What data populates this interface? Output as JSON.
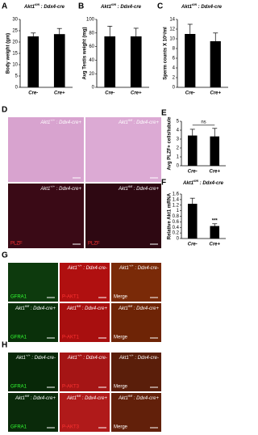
{
  "chart_data": [
    {
      "type": "bar",
      "letter": "A",
      "title": [
        "Akt1",
        "fl/fl",
        " : Ddx4-cre"
      ],
      "ylabel": "Body weight (gm)",
      "categories": [
        "Cre-",
        "Cre+"
      ],
      "values": [
        22.5,
        23.5
      ],
      "errors": [
        1.5,
        2.5
      ],
      "ylim": [
        0,
        30
      ],
      "yticks": [
        0,
        5,
        10,
        15,
        20,
        25,
        30
      ],
      "color": "#000000"
    },
    {
      "type": "bar",
      "letter": "B",
      "title": [
        "Akt1",
        "fl/fl",
        " : Ddx4-cre"
      ],
      "ylabel": "Avg Testis weight (mg)",
      "categories": [
        "Cre-",
        "Cre+"
      ],
      "values": [
        75,
        75
      ],
      "errors": [
        15,
        12
      ],
      "ylim": [
        0,
        100
      ],
      "yticks": [
        0,
        20,
        40,
        60,
        80,
        100
      ],
      "color": "#000000"
    },
    {
      "type": "bar",
      "letter": "C",
      "title": [
        "Akt1",
        "fl/fl",
        " : Ddx4-cre"
      ],
      "ylabel": "Sperm counts X 10⁶/ml",
      "categories": [
        "Cre-",
        "Cre+"
      ],
      "values": [
        11,
        9.5
      ],
      "errors": [
        2,
        1.7
      ],
      "ylim": [
        0,
        14
      ],
      "yticks": [
        0,
        2,
        4,
        6,
        8,
        10,
        12,
        14
      ],
      "color": "#000000"
    },
    {
      "type": "bar",
      "letter": "E",
      "ylabel": "Avg PLZF+ cells/tubule",
      "categories": [
        "Cre-",
        "Cre+"
      ],
      "values": [
        3.4,
        3.3
      ],
      "errors": [
        0.7,
        0.9
      ],
      "ylim": [
        0,
        5
      ],
      "yticks": [
        0,
        1,
        2,
        3,
        4,
        5
      ],
      "color": "#000000",
      "annotation": "ns"
    },
    {
      "type": "bar",
      "letter": "F",
      "title": [
        "Akt1",
        "fl/fl",
        " : Ddx4-cre"
      ],
      "ylabel": "Relative Akt1 mRNA",
      "categories": [
        "Cre-",
        "Cre+"
      ],
      "values": [
        1.25,
        0.45
      ],
      "errors": [
        0.2,
        0.08
      ],
      "ylim": [
        0,
        1.6
      ],
      "yticks": [
        0,
        0.2,
        0.4,
        0.6,
        0.8,
        1,
        1.2,
        1.4,
        1.6
      ],
      "color": "#000000",
      "annotation": "***"
    }
  ],
  "micrographs": [
    {
      "letter": "D",
      "cols": 2,
      "tiles": [
        {
          "genotype": [
            "Akt1",
            "+/+",
            " : Ddx4-cre+"
          ],
          "color": "#d8a3cf"
        },
        {
          "genotype": [
            "Akt1",
            "fl/fl",
            " : Ddx4-cre+"
          ],
          "color": "#dcaad4"
        },
        {
          "genotype": [
            "Akt1",
            "+/+",
            " : Ddx4-cre+"
          ],
          "channel": "PLZF",
          "channel_color": "#ff3333",
          "color": "#3a0a16"
        },
        {
          "genotype": [
            "Akt1",
            "fl/fl",
            " : Ddx4-cre+"
          ],
          "channel": "PLZF",
          "channel_color": "#ff3333",
          "color": "#2e0812"
        }
      ]
    },
    {
      "letter": "G",
      "cols": 3,
      "tiles": [
        {
          "channel": "GFRA1",
          "channel_color": "#33ff33",
          "color": "#0d3a0d"
        },
        {
          "genotype": [
            "Akt1",
            "+/+",
            " : Ddx4-cre-"
          ],
          "channel": "P-AKT1",
          "channel_color": "#ff3333",
          "color": "#b01010"
        },
        {
          "genotype": [
            "Akt1",
            "+/+",
            " : Ddx4-cre-"
          ],
          "channel": "Merge",
          "channel_color": "#ffffff",
          "color": "#7a2a08"
        },
        {
          "genotype": [
            "Akt1",
            "fl/fl",
            " : Ddx4-cre+"
          ],
          "channel": "GFRA1",
          "channel_color": "#33ff33",
          "color": "#0a300a"
        },
        {
          "genotype": [
            "Akt1",
            "fl/fl",
            " : Ddx4-cre+"
          ],
          "channel": "P-AKT1",
          "channel_color": "#ff3333",
          "color": "#a80f0f"
        },
        {
          "genotype": [
            "Akt1",
            "fl/fl",
            " : Ddx4-cre+"
          ],
          "channel": "Merge",
          "channel_color": "#ffffff",
          "color": "#6e2406"
        }
      ]
    },
    {
      "letter": "H",
      "cols": 3,
      "tiles": [
        {
          "genotype": [
            "Akt1",
            "+/+",
            " : Ddx4-cre-"
          ],
          "channel": "GFRA1",
          "channel_color": "#33ff33",
          "color": "#082808"
        },
        {
          "genotype": [
            "Akt1",
            "+/+",
            " : Ddx4-cre-"
          ],
          "channel": "P-AKT3",
          "channel_color": "#ff3333",
          "color": "#a51515"
        },
        {
          "genotype": [
            "Akt1",
            "+/+",
            " : Ddx4-cre-"
          ],
          "channel": "Merge",
          "channel_color": "#ffffff",
          "color": "#5a1e0a"
        },
        {
          "genotype": [
            "Akt1",
            "fl/fl",
            " : Ddx4-cre+"
          ],
          "channel": "GFRA1",
          "channel_color": "#33ff33",
          "color": "#0a2a0a"
        },
        {
          "genotype": [
            "Akt1",
            "fl/fl",
            " : Ddx4-cre+"
          ],
          "channel": "P-AKT3",
          "channel_color": "#ff3333",
          "color": "#b01a1a"
        },
        {
          "genotype": [
            "Akt1",
            "fl/fl",
            " : Ddx4-cre+"
          ],
          "channel": "Merge",
          "channel_color": "#ffffff",
          "color": "#62200a"
        }
      ]
    }
  ]
}
